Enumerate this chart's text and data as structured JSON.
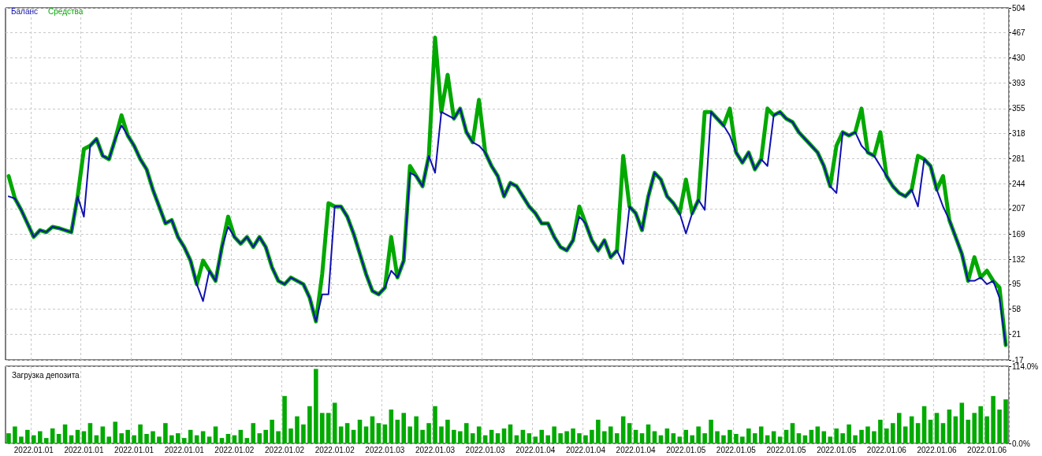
{
  "chart_data": [
    {
      "type": "line",
      "categories": [
        null,
        null,
        null,
        null,
        "2022.01.01",
        null,
        null,
        null,
        null,
        null,
        null,
        null,
        "2022.01.01",
        null,
        null,
        null,
        null,
        null,
        null,
        null,
        "2022.01.01",
        null,
        null,
        null,
        null,
        null,
        null,
        null,
        "2022.01.01",
        null,
        null,
        null,
        null,
        null,
        null,
        null,
        "2022.01.02",
        null,
        null,
        null,
        null,
        null,
        null,
        null,
        "2022.01.02",
        null,
        null,
        null,
        null,
        null,
        null,
        null,
        "2022.01.02",
        null,
        null,
        null,
        null,
        null,
        null,
        null,
        "2022.01.03",
        null,
        null,
        null,
        null,
        null,
        null,
        null,
        "2022.01.03",
        null,
        null,
        null,
        null,
        null,
        null,
        null,
        "2022.01.03",
        null,
        null,
        null,
        null,
        null,
        null,
        null,
        "2022.01.04",
        null,
        null,
        null,
        null,
        null,
        null,
        null,
        "2022.01.04",
        null,
        null,
        null,
        null,
        null,
        null,
        null,
        "2022.01.04",
        null,
        null,
        null,
        null,
        null,
        null,
        null,
        "2022.01.05",
        null,
        null,
        null,
        null,
        null,
        null,
        null,
        "2022.01.05",
        null,
        null,
        null,
        null,
        null,
        null,
        null,
        "2022.01.05",
        null,
        null,
        null,
        null,
        null,
        null,
        null,
        "2022.01.05",
        null,
        null,
        null,
        null,
        null,
        null,
        null,
        "2022.01.06",
        null,
        null,
        null,
        null,
        null,
        null,
        null,
        "2022.01.06",
        null,
        null,
        null,
        null,
        null,
        null,
        null,
        "2022.01.06",
        null,
        null,
        null
      ],
      "series": [
        {
          "name": "Средства",
          "color": "#00a800",
          "values": [
            255,
            222,
            205,
            185,
            165,
            175,
            172,
            180,
            178,
            175,
            172,
            225,
            295,
            300,
            310,
            285,
            280,
            310,
            345,
            315,
            300,
            280,
            265,
            235,
            210,
            185,
            190,
            165,
            150,
            130,
            95,
            130,
            115,
            100,
            150,
            195,
            165,
            155,
            165,
            150,
            165,
            150,
            120,
            100,
            95,
            105,
            100,
            95,
            75,
            40,
            110,
            215,
            210,
            210,
            195,
            170,
            140,
            110,
            85,
            80,
            90,
            165,
            105,
            130,
            270,
            255,
            240,
            285,
            460,
            350,
            405,
            340,
            355,
            320,
            305,
            368,
            290,
            270,
            255,
            225,
            245,
            240,
            225,
            210,
            200,
            185,
            185,
            165,
            150,
            145,
            160,
            210,
            185,
            160,
            145,
            160,
            135,
            145,
            285,
            210,
            200,
            175,
            225,
            260,
            250,
            225,
            215,
            200,
            250,
            200,
            220,
            350,
            350,
            340,
            330,
            355,
            290,
            275,
            290,
            265,
            280,
            355,
            345,
            350,
            340,
            335,
            320,
            310,
            300,
            290,
            270,
            240,
            300,
            320,
            315,
            320,
            355,
            290,
            285,
            320,
            255,
            240,
            230,
            225,
            235,
            285,
            280,
            270,
            235,
            255,
            190,
            165,
            140,
            100,
            135,
            105,
            115,
            100,
            90,
            5
          ]
        },
        {
          "name": "Баланс",
          "color": "#1010b0",
          "values": [
            225,
            222,
            205,
            185,
            165,
            175,
            172,
            180,
            178,
            175,
            172,
            225,
            195,
            300,
            310,
            285,
            280,
            310,
            330,
            315,
            300,
            280,
            265,
            235,
            210,
            185,
            190,
            165,
            150,
            130,
            95,
            70,
            115,
            100,
            150,
            180,
            165,
            155,
            165,
            150,
            165,
            150,
            120,
            100,
            95,
            105,
            100,
            95,
            75,
            40,
            80,
            80,
            210,
            210,
            195,
            170,
            140,
            110,
            85,
            80,
            90,
            115,
            105,
            130,
            260,
            255,
            240,
            285,
            260,
            350,
            345,
            340,
            355,
            320,
            305,
            300,
            290,
            270,
            255,
            225,
            245,
            240,
            225,
            210,
            200,
            185,
            185,
            165,
            150,
            145,
            160,
            195,
            185,
            160,
            145,
            160,
            135,
            145,
            125,
            210,
            200,
            175,
            225,
            260,
            250,
            225,
            215,
            200,
            170,
            200,
            220,
            205,
            350,
            340,
            330,
            315,
            290,
            275,
            290,
            265,
            280,
            270,
            345,
            350,
            340,
            335,
            320,
            310,
            300,
            290,
            270,
            240,
            230,
            320,
            315,
            320,
            300,
            290,
            285,
            270,
            255,
            240,
            230,
            225,
            235,
            210,
            280,
            270,
            235,
            210,
            190,
            165,
            140,
            100,
            100,
            105,
            95,
            100,
            75,
            5
          ]
        }
      ],
      "ylim": [
        -17,
        504
      ],
      "yticks": [
        -17,
        21,
        58,
        95,
        132,
        169,
        207,
        244,
        281,
        318,
        355,
        393,
        430,
        467,
        504
      ],
      "grid": true,
      "legend": "top left",
      "tick_labels": "y",
      "line_style": "solid"
    },
    {
      "type": "bar",
      "title": "Загрузка депозита",
      "categories": [
        null,
        null,
        null,
        null,
        "2022.01.01",
        null,
        null,
        null,
        null,
        null,
        null,
        null,
        "2022.01.01",
        null,
        null,
        null,
        null,
        null,
        null,
        null,
        "2022.01.01",
        null,
        null,
        null,
        null,
        null,
        null,
        null,
        "2022.01.01",
        null,
        null,
        null,
        null,
        null,
        null,
        null,
        "2022.01.02",
        null,
        null,
        null,
        null,
        null,
        null,
        null,
        "2022.01.02",
        null,
        null,
        null,
        null,
        null,
        null,
        null,
        "2022.01.02",
        null,
        null,
        null,
        null,
        null,
        null,
        null,
        "2022.01.03",
        null,
        null,
        null,
        null,
        null,
        null,
        null,
        "2022.01.03",
        null,
        null,
        null,
        null,
        null,
        null,
        null,
        "2022.01.03",
        null,
        null,
        null,
        null,
        null,
        null,
        null,
        "2022.01.04",
        null,
        null,
        null,
        null,
        null,
        null,
        null,
        "2022.01.04",
        null,
        null,
        null,
        null,
        null,
        null,
        null,
        "2022.01.04",
        null,
        null,
        null,
        null,
        null,
        null,
        null,
        "2022.01.05",
        null,
        null,
        null,
        null,
        null,
        null,
        null,
        "2022.01.05",
        null,
        null,
        null,
        null,
        null,
        null,
        null,
        "2022.01.05",
        null,
        null,
        null,
        null,
        null,
        null,
        null,
        "2022.01.05",
        null,
        null,
        null,
        null,
        null,
        null,
        null,
        "2022.01.06",
        null,
        null,
        null,
        null,
        null,
        null,
        null,
        "2022.01.06",
        null,
        null,
        null,
        null,
        null,
        null,
        null,
        "2022.01.06",
        null,
        null,
        null
      ],
      "values": [
        15,
        25,
        10,
        20,
        12,
        18,
        8,
        22,
        14,
        28,
        12,
        20,
        18,
        30,
        12,
        25,
        10,
        32,
        15,
        20,
        12,
        28,
        14,
        18,
        10,
        30,
        12,
        15,
        8,
        20,
        12,
        18,
        10,
        25,
        8,
        14,
        12,
        20,
        8,
        30,
        15,
        20,
        35,
        18,
        70,
        22,
        40,
        28,
        55,
        110,
        45,
        45,
        60,
        25,
        30,
        20,
        35,
        25,
        40,
        30,
        28,
        50,
        35,
        45,
        25,
        40,
        20,
        30,
        55,
        25,
        35,
        20,
        18,
        30,
        15,
        25,
        12,
        20,
        15,
        22,
        28,
        12,
        20,
        15,
        10,
        20,
        12,
        25,
        15,
        18,
        22,
        15,
        12,
        20,
        35,
        18,
        25,
        15,
        40,
        30,
        20,
        15,
        28,
        18,
        12,
        22,
        15,
        10,
        20,
        12,
        25,
        15,
        35,
        18,
        12,
        20,
        14,
        10,
        22,
        15,
        25,
        12,
        18,
        10,
        20,
        30,
        15,
        12,
        20,
        25,
        18,
        10,
        22,
        15,
        28,
        12,
        20,
        25,
        18,
        35,
        22,
        30,
        45,
        25,
        40,
        30,
        55,
        35,
        45,
        30,
        50,
        40,
        60,
        35,
        45,
        55,
        40,
        70,
        50,
        65
      ],
      "color": "#00aa00",
      "ylim": [
        0,
        114
      ],
      "yticks": [
        {
          "value": 0,
          "label": "0.0%"
        },
        {
          "value": 114,
          "label": "114.0%"
        }
      ],
      "grid": true
    }
  ]
}
